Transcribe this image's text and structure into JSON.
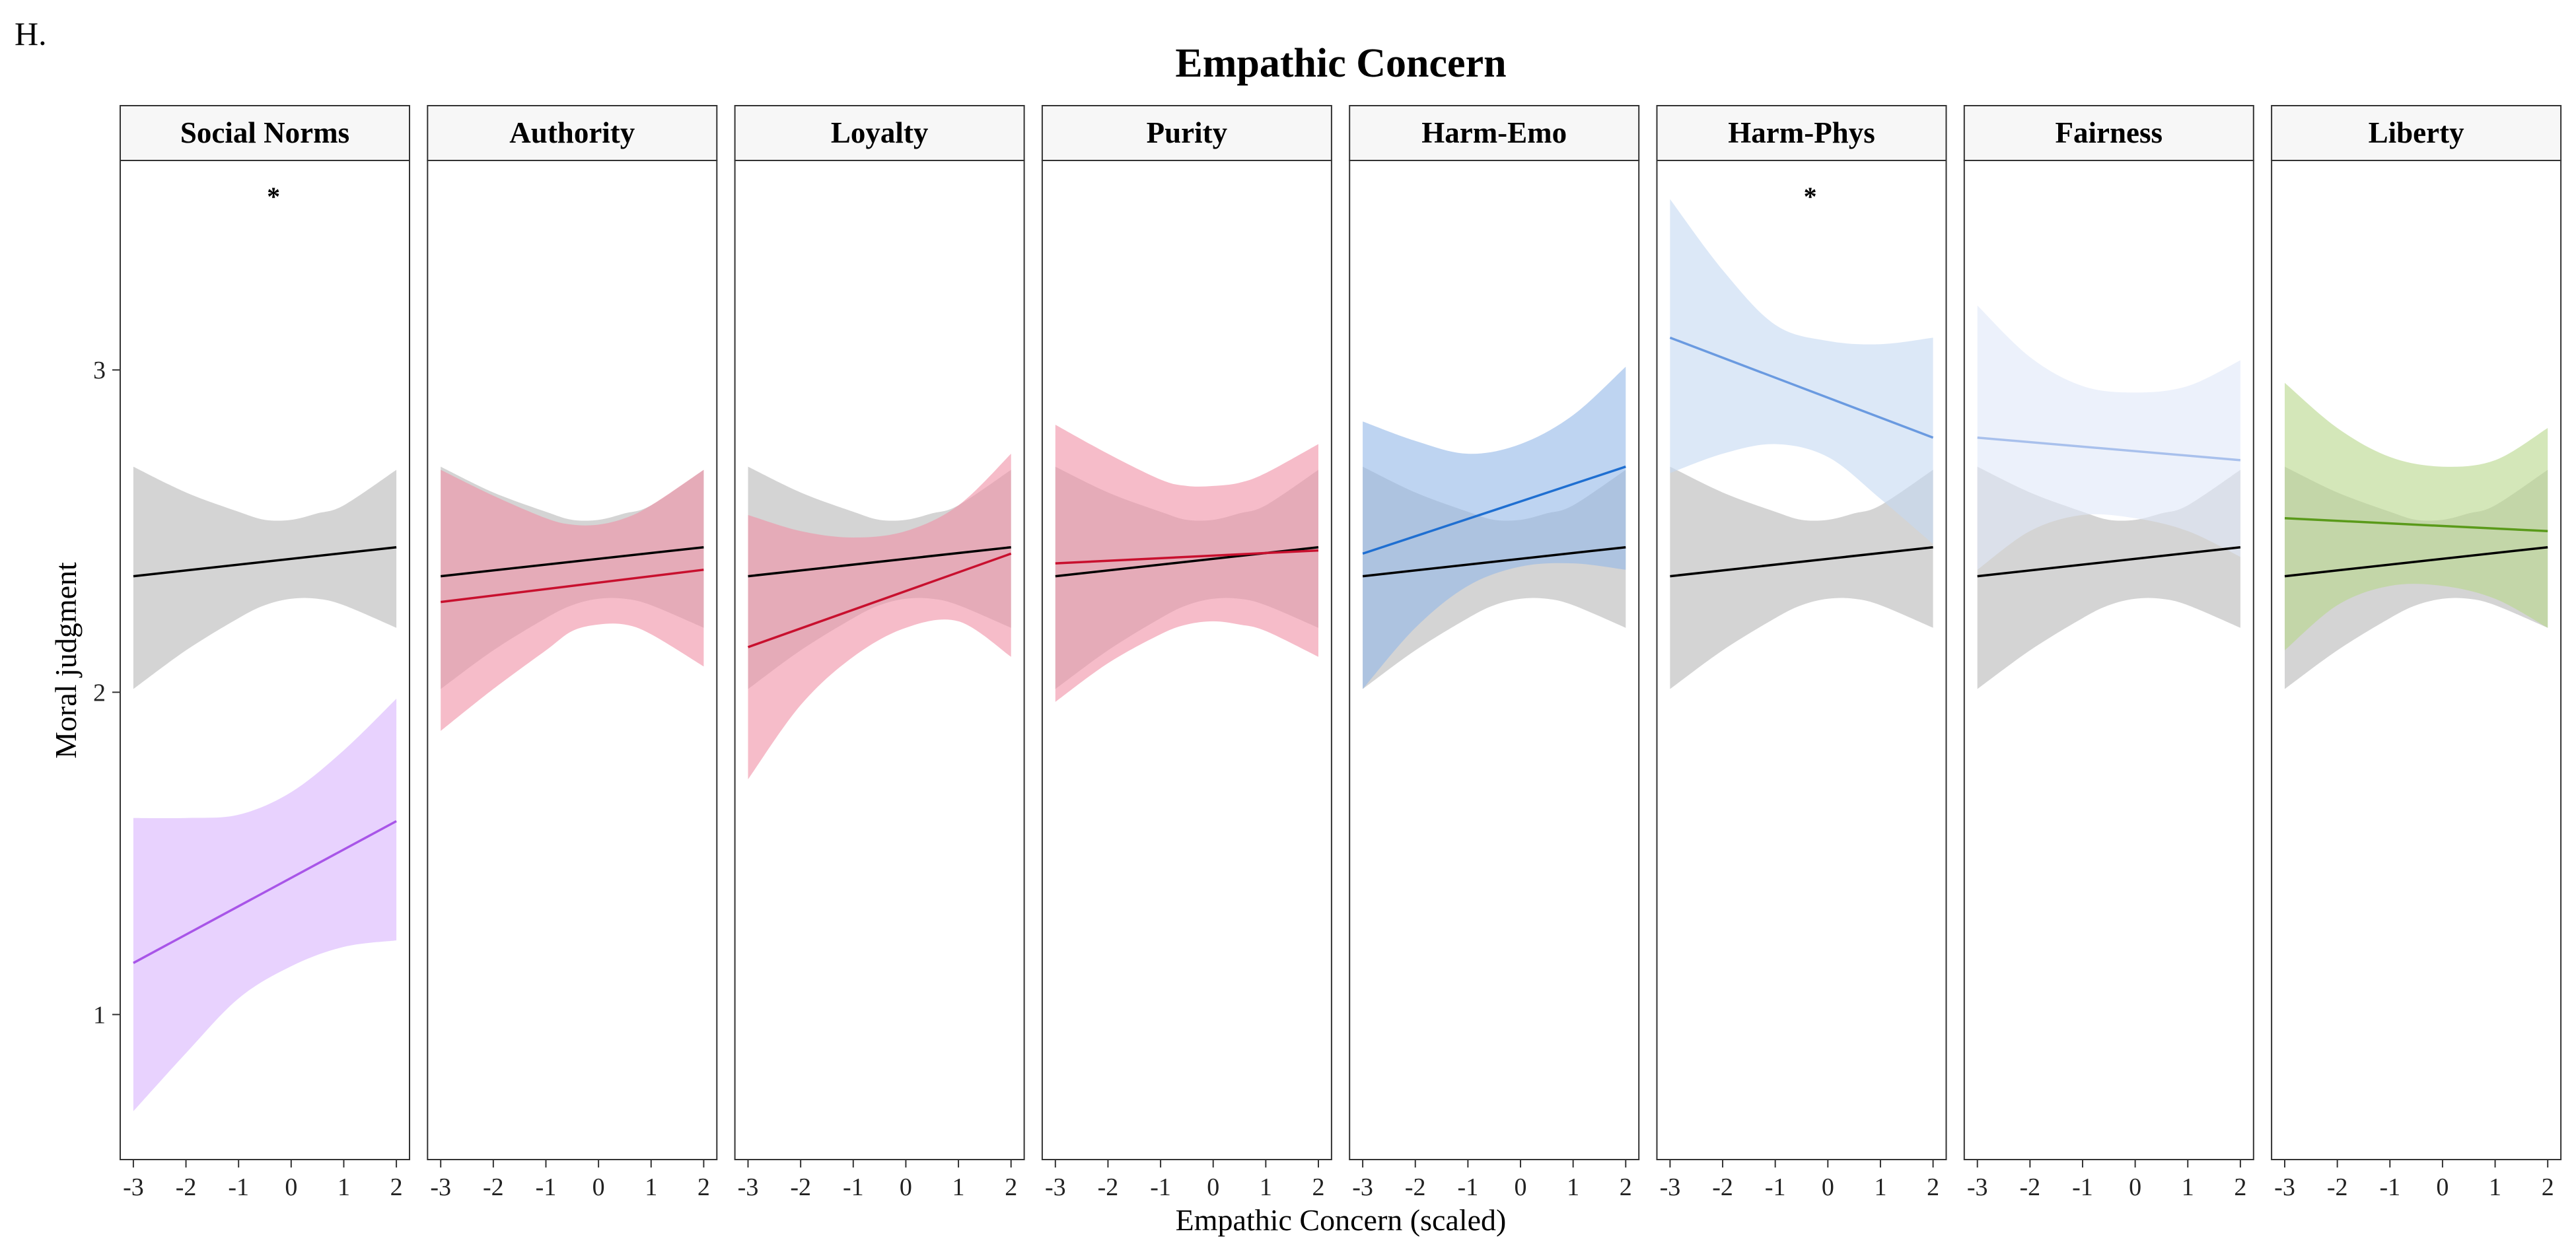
{
  "panel_tag": "H.",
  "chart_data": {
    "type": "line",
    "title": "Empathic Concern",
    "xlabel": "Empathic Concern (scaled)",
    "ylabel": "Moral judgment",
    "xlim": [
      -3.25,
      2.25
    ],
    "ylim": [
      0.55,
      3.65
    ],
    "x_ticks": [
      -3,
      -2,
      -1,
      0,
      1,
      2
    ],
    "x_tick_labels": [
      "-3",
      "-2",
      "-1",
      "0",
      "1",
      "2"
    ],
    "y_ticks": [
      1,
      2,
      3
    ],
    "y_tick_labels": [
      "1",
      "2",
      "3"
    ],
    "grid": false,
    "legend": "none",
    "reference": {
      "color": "#000000",
      "band_color": "#bdbdbd",
      "fit": [
        [
          -3,
          2.36
        ],
        [
          2,
          2.45
        ]
      ],
      "band_upper": [
        [
          -3,
          2.7
        ],
        [
          -2,
          2.62
        ],
        [
          -1,
          2.56
        ],
        [
          -0.5,
          2.535
        ],
        [
          0,
          2.535
        ],
        [
          0.5,
          2.555
        ],
        [
          1,
          2.58
        ],
        [
          2,
          2.69
        ]
      ],
      "band_lower": [
        [
          -3,
          2.01
        ],
        [
          -2,
          2.13
        ],
        [
          -1,
          2.23
        ],
        [
          -0.5,
          2.27
        ],
        [
          0,
          2.29
        ],
        [
          0.5,
          2.29
        ],
        [
          1,
          2.27
        ],
        [
          2,
          2.2
        ]
      ]
    },
    "panels": [
      {
        "name": "Social Norms",
        "significance": "*",
        "color": "#a855e8",
        "band_color": "#d8b4fe",
        "fit": [
          [
            -3,
            1.16
          ],
          [
            2,
            1.6
          ]
        ],
        "band_upper": [
          [
            -3,
            1.61
          ],
          [
            -2,
            1.61
          ],
          [
            -1,
            1.62
          ],
          [
            0,
            1.69
          ],
          [
            1,
            1.82
          ],
          [
            2,
            1.98
          ]
        ],
        "band_lower": [
          [
            -3,
            0.7
          ],
          [
            -2,
            0.88
          ],
          [
            -1,
            1.05
          ],
          [
            0,
            1.15
          ],
          [
            1,
            1.21
          ],
          [
            2,
            1.23
          ]
        ]
      },
      {
        "name": "Authority",
        "significance": "",
        "color": "#c8102e",
        "band_color": "#f08fa5",
        "fit": [
          [
            -3,
            2.28
          ],
          [
            2,
            2.38
          ]
        ],
        "band_upper": [
          [
            -3,
            2.69
          ],
          [
            -2,
            2.61
          ],
          [
            -1,
            2.54
          ],
          [
            -0.5,
            2.52
          ],
          [
            0,
            2.52
          ],
          [
            0.5,
            2.54
          ],
          [
            1,
            2.58
          ],
          [
            2,
            2.69
          ]
        ],
        "band_lower": [
          [
            -3,
            1.88
          ],
          [
            -2,
            2.01
          ],
          [
            -1,
            2.13
          ],
          [
            -0.5,
            2.19
          ],
          [
            0,
            2.21
          ],
          [
            0.5,
            2.21
          ],
          [
            1,
            2.18
          ],
          [
            2,
            2.08
          ]
        ]
      },
      {
        "name": "Loyalty",
        "significance": "",
        "color": "#c8102e",
        "band_color": "#f08fa5",
        "fit": [
          [
            -3,
            2.14
          ],
          [
            2,
            2.43
          ]
        ],
        "band_upper": [
          [
            -3,
            2.55
          ],
          [
            -2,
            2.5
          ],
          [
            -1,
            2.48
          ],
          [
            0,
            2.5
          ],
          [
            1,
            2.58
          ],
          [
            2,
            2.74
          ]
        ],
        "band_lower": [
          [
            -3,
            1.73
          ],
          [
            -2,
            1.96
          ],
          [
            -1,
            2.11
          ],
          [
            0,
            2.2
          ],
          [
            1,
            2.22
          ],
          [
            2,
            2.11
          ]
        ]
      },
      {
        "name": "Purity",
        "significance": "",
        "color": "#c8102e",
        "band_color": "#f08fa5",
        "fit": [
          [
            -3,
            2.4
          ],
          [
            2,
            2.44
          ]
        ],
        "band_upper": [
          [
            -3,
            2.83
          ],
          [
            -2,
            2.74
          ],
          [
            -1,
            2.66
          ],
          [
            -0.5,
            2.64
          ],
          [
            0,
            2.64
          ],
          [
            0.5,
            2.65
          ],
          [
            1,
            2.68
          ],
          [
            2,
            2.77
          ]
        ],
        "band_lower": [
          [
            -3,
            1.97
          ],
          [
            -2,
            2.09
          ],
          [
            -1,
            2.18
          ],
          [
            -0.5,
            2.21
          ],
          [
            0,
            2.22
          ],
          [
            0.5,
            2.21
          ],
          [
            1,
            2.19
          ],
          [
            2,
            2.11
          ]
        ]
      },
      {
        "name": "Harm-Emo",
        "significance": "",
        "color": "#1f6fd1",
        "band_color": "#93b8e8",
        "fit": [
          [
            -3,
            2.43
          ],
          [
            2,
            2.7
          ]
        ],
        "band_upper": [
          [
            -3,
            2.84
          ],
          [
            -2,
            2.78
          ],
          [
            -1,
            2.74
          ],
          [
            0,
            2.77
          ],
          [
            1,
            2.86
          ],
          [
            2,
            3.01
          ]
        ],
        "band_lower": [
          [
            -3,
            2.01
          ],
          [
            -2,
            2.2
          ],
          [
            -1,
            2.33
          ],
          [
            0,
            2.39
          ],
          [
            1,
            2.4
          ],
          [
            2,
            2.38
          ]
        ]
      },
      {
        "name": "Harm-Phys",
        "significance": "*",
        "color": "#6a9ae0",
        "band_color": "#c5d8f2",
        "fit": [
          [
            -3,
            3.1
          ],
          [
            2,
            2.79
          ]
        ],
        "band_upper": [
          [
            -3,
            3.53
          ],
          [
            -2,
            3.31
          ],
          [
            -1,
            3.14
          ],
          [
            0,
            3.09
          ],
          [
            1,
            3.08
          ],
          [
            2,
            3.1
          ]
        ],
        "band_lower": [
          [
            -3,
            2.68
          ],
          [
            -2,
            2.74
          ],
          [
            -1,
            2.77
          ],
          [
            0,
            2.73
          ],
          [
            1,
            2.6
          ],
          [
            2,
            2.46
          ]
        ]
      },
      {
        "name": "Fairness",
        "significance": "",
        "color": "#a8c0ec",
        "band_color": "#dfe8f8",
        "fit": [
          [
            -3,
            2.79
          ],
          [
            2,
            2.72
          ]
        ],
        "band_upper": [
          [
            -3,
            3.2
          ],
          [
            -2,
            3.04
          ],
          [
            -1,
            2.95
          ],
          [
            0,
            2.93
          ],
          [
            1,
            2.95
          ],
          [
            2,
            3.03
          ]
        ],
        "band_lower": [
          [
            -3,
            2.38
          ],
          [
            -2,
            2.5
          ],
          [
            -1,
            2.55
          ],
          [
            0,
            2.54
          ],
          [
            1,
            2.5
          ],
          [
            2,
            2.42
          ]
        ]
      },
      {
        "name": "Liberty",
        "significance": "",
        "color": "#5a9a1a",
        "band_color": "#b7d78a",
        "fit": [
          [
            -3,
            2.54
          ],
          [
            2,
            2.5
          ]
        ],
        "band_upper": [
          [
            -3,
            2.96
          ],
          [
            -2,
            2.82
          ],
          [
            -1,
            2.73
          ],
          [
            0,
            2.7
          ],
          [
            1,
            2.72
          ],
          [
            2,
            2.82
          ]
        ],
        "band_lower": [
          [
            -3,
            2.13
          ],
          [
            -2,
            2.27
          ],
          [
            -1,
            2.33
          ],
          [
            0,
            2.33
          ],
          [
            1,
            2.29
          ],
          [
            2,
            2.2
          ]
        ]
      }
    ]
  }
}
